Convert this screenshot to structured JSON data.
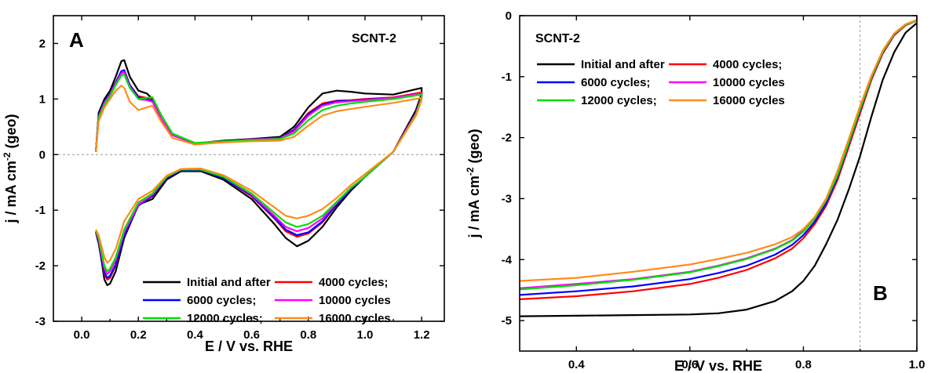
{
  "chart_data": [
    {
      "panel": "A",
      "type": "line",
      "sample_label": "SCNT-2",
      "xlabel": "E / V vs. RHE",
      "ylabel_prefix": "j / mA cm",
      "ylabel_sup": "-2",
      "ylabel_suffix": " (geo)",
      "xlim": [
        -0.1,
        1.28
      ],
      "ylim": [
        -3,
        2.5
      ],
      "xticks": [
        "0.0",
        "0.2",
        "0.4",
        "0.6",
        "0.8",
        "1.0",
        "1.2"
      ],
      "yticks": [
        "-3",
        "-2",
        "-1",
        "0",
        "1",
        "2"
      ],
      "zero_line": true,
      "legend_position": "bottom-right",
      "series": [
        {
          "name": "Initial and after",
          "color": "#000000",
          "x": [
            0.05,
            0.06,
            0.08,
            0.1,
            0.12,
            0.14,
            0.15,
            0.17,
            0.2,
            0.23,
            0.25,
            0.28,
            0.32,
            0.4,
            0.5,
            0.6,
            0.7,
            0.75,
            0.8,
            0.85,
            0.9,
            0.95,
            1.0,
            1.1,
            1.2,
            1.2,
            1.18,
            1.1,
            1.0,
            0.95,
            0.9,
            0.85,
            0.8,
            0.76,
            0.72,
            0.68,
            0.6,
            0.5,
            0.42,
            0.35,
            0.3,
            0.25,
            0.2,
            0.15,
            0.12,
            0.1,
            0.09,
            0.08,
            0.07,
            0.06,
            0.05
          ],
          "y": [
            0.05,
            0.75,
            1.0,
            1.15,
            1.4,
            1.68,
            1.7,
            1.4,
            1.15,
            1.1,
            1.0,
            0.65,
            0.35,
            0.2,
            0.25,
            0.28,
            0.32,
            0.5,
            0.85,
            1.1,
            1.15,
            1.13,
            1.1,
            1.08,
            1.2,
            1.1,
            0.8,
            0.05,
            -0.4,
            -0.65,
            -0.95,
            -1.3,
            -1.55,
            -1.65,
            -1.5,
            -1.25,
            -0.8,
            -0.45,
            -0.3,
            -0.3,
            -0.45,
            -0.8,
            -0.9,
            -1.5,
            -2.1,
            -2.32,
            -2.35,
            -2.25,
            -1.9,
            -1.6,
            -1.4
          ]
        },
        {
          "name": "4000 cycles;",
          "color": "#ff0000",
          "x": [
            0.05,
            0.06,
            0.08,
            0.1,
            0.12,
            0.14,
            0.15,
            0.17,
            0.2,
            0.23,
            0.25,
            0.28,
            0.32,
            0.4,
            0.5,
            0.6,
            0.7,
            0.75,
            0.8,
            0.85,
            0.9,
            0.95,
            1.0,
            1.1,
            1.2,
            1.2,
            1.18,
            1.1,
            1.0,
            0.95,
            0.9,
            0.85,
            0.8,
            0.76,
            0.72,
            0.68,
            0.6,
            0.5,
            0.42,
            0.35,
            0.3,
            0.25,
            0.2,
            0.15,
            0.12,
            0.1,
            0.09,
            0.08,
            0.07,
            0.06,
            0.05
          ],
          "y": [
            0.05,
            0.7,
            0.95,
            1.1,
            1.3,
            1.5,
            1.52,
            1.25,
            1.05,
            1.02,
            0.97,
            0.65,
            0.35,
            0.2,
            0.24,
            0.27,
            0.3,
            0.45,
            0.75,
            0.92,
            0.97,
            0.98,
            1.0,
            1.03,
            1.12,
            1.05,
            0.75,
            0.05,
            -0.4,
            -0.62,
            -0.9,
            -1.22,
            -1.42,
            -1.48,
            -1.38,
            -1.15,
            -0.75,
            -0.42,
            -0.28,
            -0.28,
            -0.42,
            -0.75,
            -0.9,
            -1.45,
            -2.0,
            -2.22,
            -2.25,
            -2.15,
            -1.85,
            -1.55,
            -1.4
          ]
        },
        {
          "name": "6000 cycles;",
          "color": "#0000ff",
          "x": [
            0.05,
            0.06,
            0.08,
            0.1,
            0.12,
            0.14,
            0.15,
            0.17,
            0.2,
            0.23,
            0.25,
            0.28,
            0.32,
            0.4,
            0.5,
            0.6,
            0.7,
            0.75,
            0.8,
            0.85,
            0.9,
            0.95,
            1.0,
            1.1,
            1.2,
            1.2,
            1.18,
            1.1,
            1.0,
            0.95,
            0.9,
            0.85,
            0.8,
            0.76,
            0.72,
            0.68,
            0.6,
            0.5,
            0.42,
            0.35,
            0.3,
            0.25,
            0.2,
            0.15,
            0.12,
            0.1,
            0.09,
            0.08,
            0.07,
            0.06,
            0.05
          ],
          "y": [
            0.05,
            0.7,
            0.95,
            1.1,
            1.3,
            1.5,
            1.52,
            1.25,
            1.03,
            1.0,
            0.96,
            0.65,
            0.35,
            0.2,
            0.24,
            0.27,
            0.3,
            0.44,
            0.73,
            0.9,
            0.96,
            0.97,
            0.99,
            1.02,
            1.1,
            1.04,
            0.75,
            0.05,
            -0.4,
            -0.62,
            -0.9,
            -1.2,
            -1.4,
            -1.45,
            -1.35,
            -1.13,
            -0.74,
            -0.42,
            -0.28,
            -0.28,
            -0.42,
            -0.74,
            -0.92,
            -1.45,
            -1.98,
            -2.18,
            -2.22,
            -2.12,
            -1.85,
            -1.55,
            -1.4
          ]
        },
        {
          "name": "10000 cycles",
          "color": "#ff00ff",
          "x": [
            0.05,
            0.06,
            0.08,
            0.1,
            0.12,
            0.14,
            0.15,
            0.17,
            0.2,
            0.23,
            0.25,
            0.28,
            0.32,
            0.4,
            0.5,
            0.6,
            0.7,
            0.75,
            0.8,
            0.85,
            0.9,
            0.95,
            1.0,
            1.1,
            1.2,
            1.2,
            1.18,
            1.1,
            1.0,
            0.95,
            0.9,
            0.85,
            0.8,
            0.76,
            0.72,
            0.68,
            0.6,
            0.5,
            0.42,
            0.35,
            0.3,
            0.25,
            0.2,
            0.15,
            0.12,
            0.1,
            0.09,
            0.08,
            0.07,
            0.06,
            0.05
          ],
          "y": [
            0.05,
            0.68,
            0.93,
            1.08,
            1.28,
            1.46,
            1.48,
            1.22,
            1.0,
            0.98,
            0.95,
            0.65,
            0.35,
            0.2,
            0.24,
            0.27,
            0.29,
            0.42,
            0.7,
            0.88,
            0.94,
            0.96,
            0.98,
            1.02,
            1.1,
            1.03,
            0.74,
            0.05,
            -0.4,
            -0.6,
            -0.87,
            -1.15,
            -1.32,
            -1.38,
            -1.3,
            -1.1,
            -0.72,
            -0.4,
            -0.27,
            -0.27,
            -0.4,
            -0.72,
            -0.9,
            -1.4,
            -1.9,
            -2.1,
            -2.15,
            -2.05,
            -1.8,
            -1.52,
            -1.38
          ]
        },
        {
          "name": "12000 cycles;",
          "color": "#00e000",
          "x": [
            0.05,
            0.06,
            0.08,
            0.1,
            0.12,
            0.14,
            0.15,
            0.17,
            0.2,
            0.23,
            0.25,
            0.28,
            0.32,
            0.4,
            0.5,
            0.6,
            0.7,
            0.75,
            0.8,
            0.85,
            0.9,
            0.95,
            1.0,
            1.1,
            1.2,
            1.2,
            1.18,
            1.1,
            1.0,
            0.95,
            0.9,
            0.85,
            0.8,
            0.76,
            0.72,
            0.68,
            0.6,
            0.5,
            0.42,
            0.35,
            0.3,
            0.25,
            0.2,
            0.15,
            0.12,
            0.1,
            0.09,
            0.08,
            0.07,
            0.06,
            0.05
          ],
          "y": [
            0.05,
            0.66,
            0.9,
            1.05,
            1.25,
            1.42,
            1.44,
            1.2,
            1.0,
            1.02,
            1.03,
            0.72,
            0.38,
            0.21,
            0.24,
            0.26,
            0.28,
            0.38,
            0.62,
            0.8,
            0.88,
            0.92,
            0.95,
            1.0,
            1.08,
            1.02,
            0.72,
            0.05,
            -0.4,
            -0.6,
            -0.85,
            -1.1,
            -1.25,
            -1.3,
            -1.22,
            -1.05,
            -0.7,
            -0.4,
            -0.27,
            -0.27,
            -0.4,
            -0.7,
            -0.86,
            -1.35,
            -1.85,
            -2.05,
            -2.1,
            -2.0,
            -1.75,
            -1.5,
            -1.38
          ]
        },
        {
          "name": "16000 cycles",
          "color": "#ff8c1a",
          "x": [
            0.05,
            0.06,
            0.08,
            0.1,
            0.12,
            0.14,
            0.15,
            0.17,
            0.2,
            0.23,
            0.25,
            0.28,
            0.32,
            0.4,
            0.5,
            0.6,
            0.7,
            0.75,
            0.8,
            0.85,
            0.9,
            0.95,
            1.0,
            1.1,
            1.2,
            1.2,
            1.18,
            1.1,
            1.0,
            0.95,
            0.9,
            0.85,
            0.8,
            0.76,
            0.72,
            0.68,
            0.6,
            0.5,
            0.42,
            0.35,
            0.3,
            0.25,
            0.2,
            0.15,
            0.12,
            0.1,
            0.09,
            0.08,
            0.07,
            0.06,
            0.05
          ],
          "y": [
            0.05,
            0.6,
            0.85,
            1.0,
            1.15,
            1.24,
            1.2,
            0.95,
            0.8,
            0.85,
            0.88,
            0.6,
            0.3,
            0.18,
            0.22,
            0.24,
            0.25,
            0.32,
            0.52,
            0.7,
            0.78,
            0.82,
            0.86,
            0.93,
            1.02,
            0.98,
            0.7,
            0.05,
            -0.35,
            -0.55,
            -0.78,
            -0.98,
            -1.1,
            -1.15,
            -1.1,
            -0.95,
            -0.65,
            -0.37,
            -0.25,
            -0.26,
            -0.38,
            -0.65,
            -0.8,
            -1.2,
            -1.7,
            -1.9,
            -1.95,
            -1.85,
            -1.65,
            -1.45,
            -1.35
          ]
        }
      ]
    },
    {
      "panel": "B",
      "type": "line",
      "sample_label": "SCNT-2",
      "xlabel": "E / V vs. RHE",
      "ylabel_prefix": "j / mA cm",
      "ylabel_sup": "-2",
      "ylabel_suffix": " (geo)",
      "xlim": [
        0.3,
        1.0
      ],
      "ylim": [
        -5.5,
        0
      ],
      "xticks": [
        "0.4",
        "0.6",
        "0.8",
        "1.0"
      ],
      "yticks": [
        "0",
        "-1",
        "-2",
        "-3",
        "-4",
        "-5"
      ],
      "reference_x": 0.9,
      "legend_position": "top-left",
      "series": [
        {
          "name": "Initial and after",
          "color": "#000000",
          "x": [
            0.3,
            0.4,
            0.5,
            0.6,
            0.65,
            0.7,
            0.75,
            0.78,
            0.8,
            0.82,
            0.84,
            0.86,
            0.88,
            0.9,
            0.92,
            0.94,
            0.96,
            0.98,
            1.0
          ],
          "y": [
            -4.93,
            -4.92,
            -4.91,
            -4.9,
            -4.88,
            -4.82,
            -4.68,
            -4.52,
            -4.35,
            -4.1,
            -3.75,
            -3.35,
            -2.85,
            -2.3,
            -1.65,
            -1.05,
            -0.6,
            -0.28,
            -0.12
          ]
        },
        {
          "name": "4000 cycles;",
          "color": "#ff0000",
          "x": [
            0.3,
            0.4,
            0.5,
            0.6,
            0.65,
            0.7,
            0.75,
            0.78,
            0.8,
            0.82,
            0.84,
            0.86,
            0.88,
            0.9,
            0.92,
            0.94,
            0.96,
            0.98,
            1.0
          ],
          "y": [
            -4.65,
            -4.6,
            -4.52,
            -4.4,
            -4.3,
            -4.17,
            -3.98,
            -3.82,
            -3.65,
            -3.42,
            -3.12,
            -2.7,
            -2.15,
            -1.6,
            -1.05,
            -0.62,
            -0.32,
            -0.16,
            -0.08
          ]
        },
        {
          "name": "6000 cycles;",
          "color": "#0000ff",
          "x": [
            0.3,
            0.4,
            0.5,
            0.6,
            0.65,
            0.7,
            0.75,
            0.78,
            0.8,
            0.82,
            0.84,
            0.86,
            0.88,
            0.9,
            0.92,
            0.94,
            0.96,
            0.98,
            1.0
          ],
          "y": [
            -4.58,
            -4.52,
            -4.44,
            -4.32,
            -4.22,
            -4.1,
            -3.92,
            -3.76,
            -3.6,
            -3.38,
            -3.08,
            -2.65,
            -2.1,
            -1.55,
            -1.02,
            -0.6,
            -0.31,
            -0.15,
            -0.08
          ]
        },
        {
          "name": "10000 cycles",
          "color": "#ff00ff",
          "x": [
            0.3,
            0.4,
            0.5,
            0.6,
            0.65,
            0.7,
            0.75,
            0.78,
            0.8,
            0.82,
            0.84,
            0.86,
            0.88,
            0.9,
            0.92,
            0.94,
            0.96,
            0.98,
            1.0
          ],
          "y": [
            -4.47,
            -4.4,
            -4.32,
            -4.2,
            -4.1,
            -3.98,
            -3.82,
            -3.68,
            -3.52,
            -3.32,
            -3.02,
            -2.6,
            -2.06,
            -1.52,
            -1.0,
            -0.58,
            -0.3,
            -0.15,
            -0.08
          ]
        },
        {
          "name": "12000 cycles;",
          "color": "#00e000",
          "x": [
            0.3,
            0.4,
            0.5,
            0.6,
            0.65,
            0.7,
            0.75,
            0.78,
            0.8,
            0.82,
            0.84,
            0.86,
            0.88,
            0.9,
            0.92,
            0.94,
            0.96,
            0.98,
            1.0
          ],
          "y": [
            -4.49,
            -4.42,
            -4.33,
            -4.21,
            -4.11,
            -3.99,
            -3.83,
            -3.69,
            -3.54,
            -3.33,
            -3.03,
            -2.62,
            -2.08,
            -1.53,
            -1.01,
            -0.59,
            -0.3,
            -0.15,
            -0.08
          ]
        },
        {
          "name": "16000 cycles",
          "color": "#ff8c1a",
          "x": [
            0.3,
            0.4,
            0.5,
            0.6,
            0.65,
            0.7,
            0.75,
            0.78,
            0.8,
            0.82,
            0.84,
            0.86,
            0.88,
            0.9,
            0.92,
            0.94,
            0.96,
            0.98,
            1.0
          ],
          "y": [
            -4.35,
            -4.3,
            -4.2,
            -4.08,
            -3.99,
            -3.89,
            -3.75,
            -3.63,
            -3.5,
            -3.3,
            -3.0,
            -2.55,
            -2.02,
            -1.48,
            -0.98,
            -0.57,
            -0.29,
            -0.14,
            -0.07
          ]
        }
      ]
    }
  ]
}
